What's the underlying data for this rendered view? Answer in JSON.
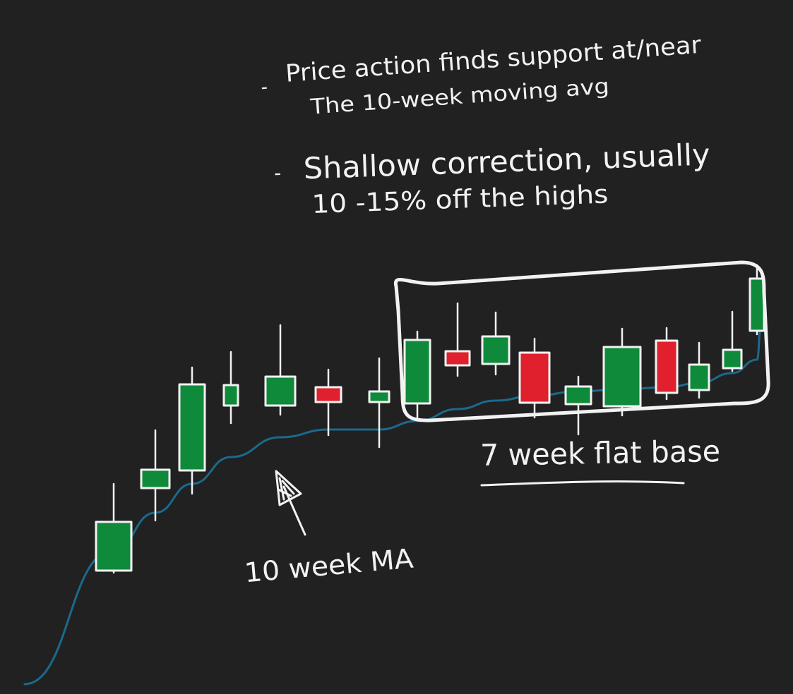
{
  "colors": {
    "background": "#212121",
    "ink": "#f2f2f2",
    "up_candle": "#0f8a3a",
    "down_candle": "#e0202c",
    "moving_average": "#1a6a8c"
  },
  "notes": [
    {
      "dash": "-",
      "lines": [
        "Price action finds support at/near",
        "The 10-week moving avg"
      ]
    },
    {
      "dash": "-",
      "lines": [
        "Shallow correction, usually",
        "10 -15% off the highs"
      ]
    }
  ],
  "labels": {
    "base": "7 week flat base",
    "moving_average": "10 week MA"
  },
  "chart_data": {
    "type": "candlestick",
    "title": "",
    "xlabel": "",
    "ylabel": "",
    "candles": [
      {
        "week": 1,
        "open": 31,
        "close": 100,
        "low": 28,
        "high": 154,
        "direction": "up"
      },
      {
        "week": 2,
        "open": 148,
        "close": 174,
        "low": 102,
        "high": 230,
        "direction": "up"
      },
      {
        "week": 3,
        "open": 173,
        "close": 295,
        "low": 140,
        "high": 319,
        "direction": "up"
      },
      {
        "week": 4,
        "open": 265,
        "close": 294,
        "low": 240,
        "high": 341,
        "direction": "up"
      },
      {
        "week": 5,
        "open": 265,
        "close": 306,
        "low": 252,
        "high": 379,
        "direction": "up"
      },
      {
        "week": 6,
        "open": 270,
        "close": 291,
        "low": 223,
        "high": 316,
        "direction": "down"
      },
      {
        "week": 7,
        "open": 270,
        "close": 285,
        "low": 206,
        "high": 332,
        "direction": "up"
      },
      {
        "week": 8,
        "open": 268,
        "close": 358,
        "low": 248,
        "high": 370,
        "direction": "up"
      },
      {
        "week": 9,
        "open": 342,
        "close": 322,
        "low": 307,
        "high": 410,
        "direction": "down"
      },
      {
        "week": 10,
        "open": 324,
        "close": 363,
        "low": 309,
        "high": 397,
        "direction": "up"
      },
      {
        "week": 11,
        "open": 340,
        "close": 269,
        "low": 248,
        "high": 360,
        "direction": "down"
      },
      {
        "week": 12,
        "open": 267,
        "close": 292,
        "low": 224,
        "high": 306,
        "direction": "up"
      },
      {
        "week": 13,
        "open": 264,
        "close": 348,
        "low": 251,
        "high": 374,
        "direction": "up"
      },
      {
        "week": 14,
        "open": 283,
        "close": 357,
        "low": 274,
        "high": 375,
        "direction": "down"
      },
      {
        "week": 15,
        "open": 287,
        "close": 323,
        "low": 276,
        "high": 354,
        "direction": "up"
      },
      {
        "week": 16,
        "open": 318,
        "close": 344,
        "low": 314,
        "high": 398,
        "direction": "up"
      },
      {
        "week": 17,
        "open": 371,
        "close": 445,
        "low": 366,
        "high": 464,
        "direction": "up"
      }
    ],
    "moving_average": {
      "name": "10 week MA",
      "values": [
        {
          "week": 1,
          "value": 60
        },
        {
          "week": 2,
          "value": 113
        },
        {
          "week": 3,
          "value": 154
        },
        {
          "week": 4,
          "value": 192
        },
        {
          "week": 5,
          "value": 220
        },
        {
          "week": 6,
          "value": 231
        },
        {
          "week": 7,
          "value": 231
        },
        {
          "week": 8,
          "value": 243
        },
        {
          "week": 9,
          "value": 260
        },
        {
          "week": 10,
          "value": 272
        },
        {
          "week": 11,
          "value": 279
        },
        {
          "week": 12,
          "value": 285
        },
        {
          "week": 13,
          "value": 288
        },
        {
          "week": 14,
          "value": 291
        },
        {
          "week": 15,
          "value": 297
        },
        {
          "week": 16,
          "value": 311
        },
        {
          "week": 17,
          "value": 330
        }
      ]
    }
  }
}
